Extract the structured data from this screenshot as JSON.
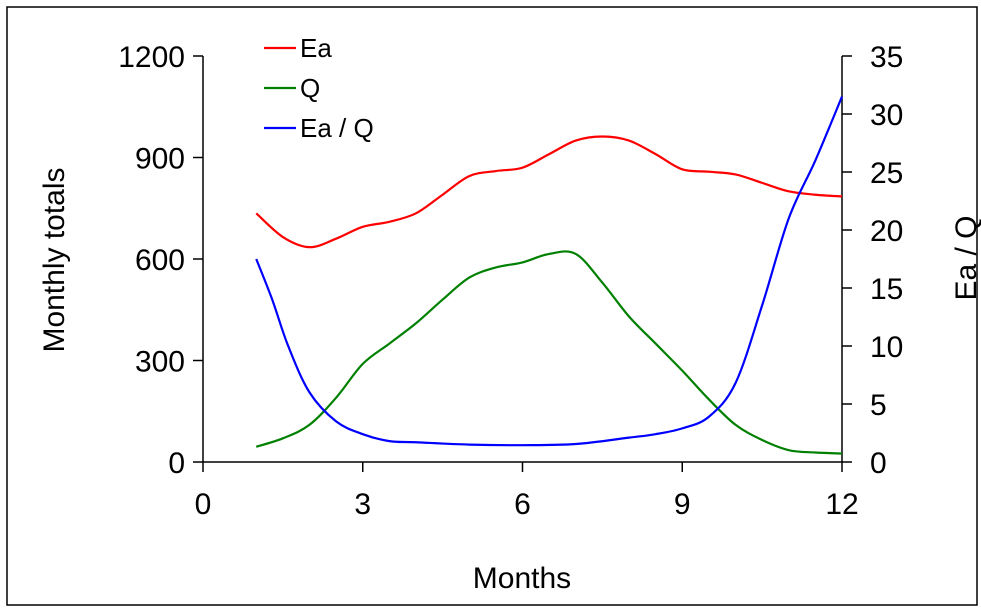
{
  "chart_data": {
    "type": "line",
    "xlabel": "Months",
    "ylabel": "Monthly totals",
    "y2label": "Ea / Q",
    "xlim": [
      0,
      12
    ],
    "ylim": [
      0,
      1200
    ],
    "y2lim": [
      0,
      35
    ],
    "xticks": [
      "0",
      "3",
      "6",
      "9",
      "12"
    ],
    "yticks": [
      "0",
      "300",
      "600",
      "900",
      "1200"
    ],
    "y2ticks": [
      "0",
      "5",
      "10",
      "15",
      "20",
      "25",
      "30",
      "35"
    ],
    "grid": false,
    "legend_position": "top-left",
    "series": [
      {
        "name": "Ea",
        "axis": "left",
        "color": "#ff0000",
        "x": [
          1,
          1.5,
          2,
          2.5,
          3,
          3.5,
          4,
          4.5,
          5,
          5.5,
          6,
          6.5,
          7,
          7.5,
          8,
          8.5,
          9,
          9.5,
          10,
          10.5,
          11,
          11.5,
          12
        ],
        "y": [
          735,
          665,
          635,
          660,
          695,
          710,
          735,
          790,
          845,
          860,
          870,
          910,
          950,
          962,
          950,
          910,
          865,
          858,
          850,
          825,
          800,
          790,
          785
        ]
      },
      {
        "name": "Q",
        "axis": "left",
        "color": "#008000",
        "x": [
          1,
          1.5,
          2,
          2.5,
          3,
          3.5,
          4,
          4.5,
          5,
          5.5,
          6,
          6.5,
          7,
          7.5,
          8,
          8.5,
          9,
          9.5,
          10,
          10.5,
          11,
          11.5,
          12
        ],
        "y": [
          45,
          70,
          110,
          190,
          290,
          350,
          410,
          480,
          545,
          575,
          590,
          615,
          615,
          530,
          430,
          350,
          270,
          185,
          110,
          65,
          35,
          28,
          25
        ]
      },
      {
        "name": "Ea / Q",
        "axis": "right",
        "color": "#0000ff",
        "x": [
          1,
          1.3,
          1.6,
          2,
          2.5,
          3,
          3.5,
          4,
          5,
          6,
          7,
          8,
          8.5,
          9,
          9.5,
          10,
          10.5,
          11,
          11.5,
          12
        ],
        "y": [
          17.5,
          14,
          10,
          6,
          3.5,
          2.4,
          1.8,
          1.7,
          1.5,
          1.45,
          1.55,
          2.1,
          2.4,
          2.9,
          3.9,
          6.8,
          13.5,
          21,
          26,
          31.5
        ]
      }
    ]
  }
}
